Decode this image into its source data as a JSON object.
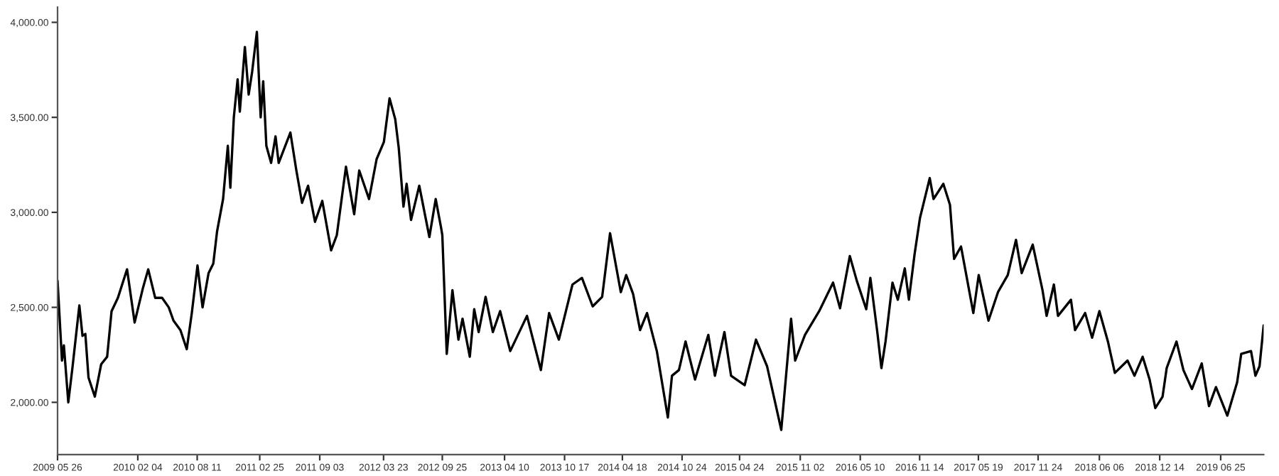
{
  "chart_data": {
    "type": "line",
    "grid": false,
    "marker": "none",
    "line_style": "solid",
    "xlim": [
      "2009-05-26",
      "2019-11-08"
    ],
    "ylim": [
      1725,
      4080
    ],
    "xticks": [
      {
        "value": "2009-05-26",
        "label": "2009 05 26"
      },
      {
        "value": "2010-02-04",
        "label": "2010 02 04"
      },
      {
        "value": "2010-08-11",
        "label": "2010 08 11"
      },
      {
        "value": "2011-02-25",
        "label": "2011 02 25"
      },
      {
        "value": "2011-09-03",
        "label": "2011 09 03"
      },
      {
        "value": "2012-03-23",
        "label": "2012 03 23"
      },
      {
        "value": "2012-09-25",
        "label": "2012 09 25"
      },
      {
        "value": "2013-04-10",
        "label": "2013 04 10"
      },
      {
        "value": "2013-10-17",
        "label": "2013 10 17"
      },
      {
        "value": "2014-04-18",
        "label": "2014 04 18"
      },
      {
        "value": "2014-10-24",
        "label": "2014 10 24"
      },
      {
        "value": "2015-04-24",
        "label": "2015 04 24"
      },
      {
        "value": "2015-11-02",
        "label": "2015 11 02"
      },
      {
        "value": "2016-05-10",
        "label": "2016 05 10"
      },
      {
        "value": "2016-11-14",
        "label": "2016 11 14"
      },
      {
        "value": "2017-05-19",
        "label": "2017 05 19"
      },
      {
        "value": "2017-11-24",
        "label": "2017 11 24"
      },
      {
        "value": "2018-06-06",
        "label": "2018 06 06"
      },
      {
        "value": "2018-12-14",
        "label": "2018 12 14"
      },
      {
        "value": "2019-06-25",
        "label": "2019 06 25"
      }
    ],
    "yticks": [
      {
        "value": 2000,
        "label": "2,000.00"
      },
      {
        "value": 2500,
        "label": "2,500.00"
      },
      {
        "value": 3000,
        "label": "3,000.00"
      },
      {
        "value": 3500,
        "label": "3,500.00"
      },
      {
        "value": 4000,
        "label": "4,000.00"
      }
    ],
    "x": [
      "2009-05-26",
      "2009-06-09",
      "2009-06-15",
      "2009-06-29",
      "2009-07-12",
      "2009-08-03",
      "2009-08-13",
      "2009-08-22",
      "2009-09-01",
      "2009-09-21",
      "2009-10-11",
      "2009-10-30",
      "2009-11-13",
      "2009-12-03",
      "2010-01-01",
      "2010-01-25",
      "2010-02-20",
      "2010-03-09",
      "2010-03-31",
      "2010-04-22",
      "2010-05-13",
      "2010-05-28",
      "2010-06-19",
      "2010-07-09",
      "2010-07-25",
      "2010-08-12",
      "2010-08-28",
      "2010-09-16",
      "2010-10-01",
      "2010-10-13",
      "2010-11-01",
      "2010-11-16",
      "2010-11-24",
      "2010-12-05",
      "2010-12-17",
      "2010-12-24",
      "2011-01-09",
      "2011-01-21",
      "2011-02-01",
      "2011-02-16",
      "2011-02-28",
      "2011-03-08",
      "2011-03-18",
      "2011-04-02",
      "2011-04-16",
      "2011-04-26",
      "2011-06-02",
      "2011-06-21",
      "2011-07-09",
      "2011-07-28",
      "2011-08-19",
      "2011-09-11",
      "2011-10-09",
      "2011-10-27",
      "2011-11-25",
      "2011-12-21",
      "2012-01-06",
      "2012-02-06",
      "2012-03-01",
      "2012-03-24",
      "2012-04-11",
      "2012-04-29",
      "2012-05-10",
      "2012-05-25",
      "2012-06-04",
      "2012-06-18",
      "2012-07-14",
      "2012-08-15",
      "2012-09-04",
      "2012-09-21",
      "2012-09-25",
      "2012-10-09",
      "2012-10-27",
      "2012-11-15",
      "2012-11-28",
      "2012-12-21",
      "2013-01-04",
      "2013-01-18",
      "2013-02-09",
      "2013-03-04",
      "2013-03-27",
      "2013-04-28",
      "2013-06-20",
      "2013-08-03",
      "2013-08-29",
      "2013-09-29",
      "2013-11-11",
      "2013-12-11",
      "2014-01-14",
      "2014-02-13",
      "2014-03-10",
      "2014-04-13",
      "2014-04-30",
      "2014-05-22",
      "2014-06-13",
      "2014-07-05",
      "2014-08-05",
      "2014-09-09",
      "2014-09-22",
      "2014-10-14",
      "2014-11-04",
      "2014-12-04",
      "2015-01-15",
      "2015-02-05",
      "2015-03-07",
      "2015-03-28",
      "2015-05-10",
      "2015-06-15",
      "2015-07-20",
      "2015-09-03",
      "2015-10-04",
      "2015-10-17",
      "2015-11-17",
      "2016-01-01",
      "2016-02-14",
      "2016-03-07",
      "2016-04-07",
      "2016-04-29",
      "2016-05-29",
      "2016-06-11",
      "2016-07-03",
      "2016-07-16",
      "2016-07-29",
      "2016-08-20",
      "2016-09-06",
      "2016-09-28",
      "2016-10-11",
      "2016-10-29",
      "2016-11-15",
      "2016-12-16",
      "2016-12-28",
      "2017-01-28",
      "2017-02-18",
      "2017-03-03",
      "2017-03-25",
      "2017-05-03",
      "2017-05-20",
      "2017-06-20",
      "2017-07-20",
      "2017-08-20",
      "2017-09-15",
      "2017-10-03",
      "2017-11-07",
      "2017-12-08",
      "2017-12-21",
      "2018-01-13",
      "2018-01-26",
      "2018-03-08",
      "2018-03-21",
      "2018-04-22",
      "2018-05-14",
      "2018-06-06",
      "2018-07-03",
      "2018-07-25",
      "2018-09-03",
      "2018-09-25",
      "2018-10-21",
      "2018-11-12",
      "2018-11-30",
      "2018-12-23",
      "2019-01-05",
      "2019-02-05",
      "2019-02-27",
      "2019-03-26",
      "2019-04-26",
      "2019-05-19",
      "2019-06-10",
      "2019-07-16",
      "2019-08-16",
      "2019-08-29",
      "2019-09-29",
      "2019-10-13",
      "2019-10-26",
      "2019-11-08"
    ],
    "series": [
      {
        "color": "#000000",
        "values": [
          2640,
          2220,
          2300,
          2000,
          2180,
          2510,
          2350,
          2360,
          2130,
          2030,
          2200,
          2240,
          2480,
          2550,
          2700,
          2420,
          2600,
          2700,
          2550,
          2550,
          2500,
          2430,
          2380,
          2280,
          2470,
          2720,
          2500,
          2680,
          2730,
          2900,
          3070,
          3350,
          3130,
          3500,
          3700,
          3530,
          3870,
          3620,
          3740,
          3950,
          3500,
          3690,
          3350,
          3260,
          3400,
          3260,
          3420,
          3220,
          3050,
          3140,
          2950,
          3060,
          2800,
          2880,
          3240,
          2990,
          3220,
          3070,
          3280,
          3370,
          3600,
          3490,
          3340,
          3030,
          3150,
          2960,
          3140,
          2870,
          3070,
          2920,
          2880,
          2255,
          2590,
          2330,
          2440,
          2240,
          2490,
          2370,
          2555,
          2370,
          2480,
          2270,
          2455,
          2170,
          2470,
          2330,
          2620,
          2655,
          2505,
          2555,
          2890,
          2580,
          2670,
          2570,
          2380,
          2470,
          2270,
          1920,
          2140,
          2170,
          2320,
          2120,
          2355,
          2140,
          2370,
          2140,
          2090,
          2330,
          2190,
          1855,
          2440,
          2220,
          2355,
          2480,
          2630,
          2495,
          2770,
          2640,
          2490,
          2655,
          2370,
          2180,
          2320,
          2630,
          2540,
          2705,
          2540,
          2780,
          2970,
          3180,
          3070,
          3150,
          3040,
          2755,
          2820,
          2470,
          2670,
          2430,
          2580,
          2670,
          2855,
          2680,
          2830,
          2590,
          2455,
          2620,
          2455,
          2540,
          2380,
          2470,
          2340,
          2480,
          2320,
          2155,
          2220,
          2140,
          2240,
          2120,
          1970,
          2030,
          2180,
          2320,
          2170,
          2070,
          2205,
          1980,
          2080,
          1930,
          2105,
          2255,
          2270,
          2140,
          2190,
          2405
        ]
      }
    ]
  }
}
